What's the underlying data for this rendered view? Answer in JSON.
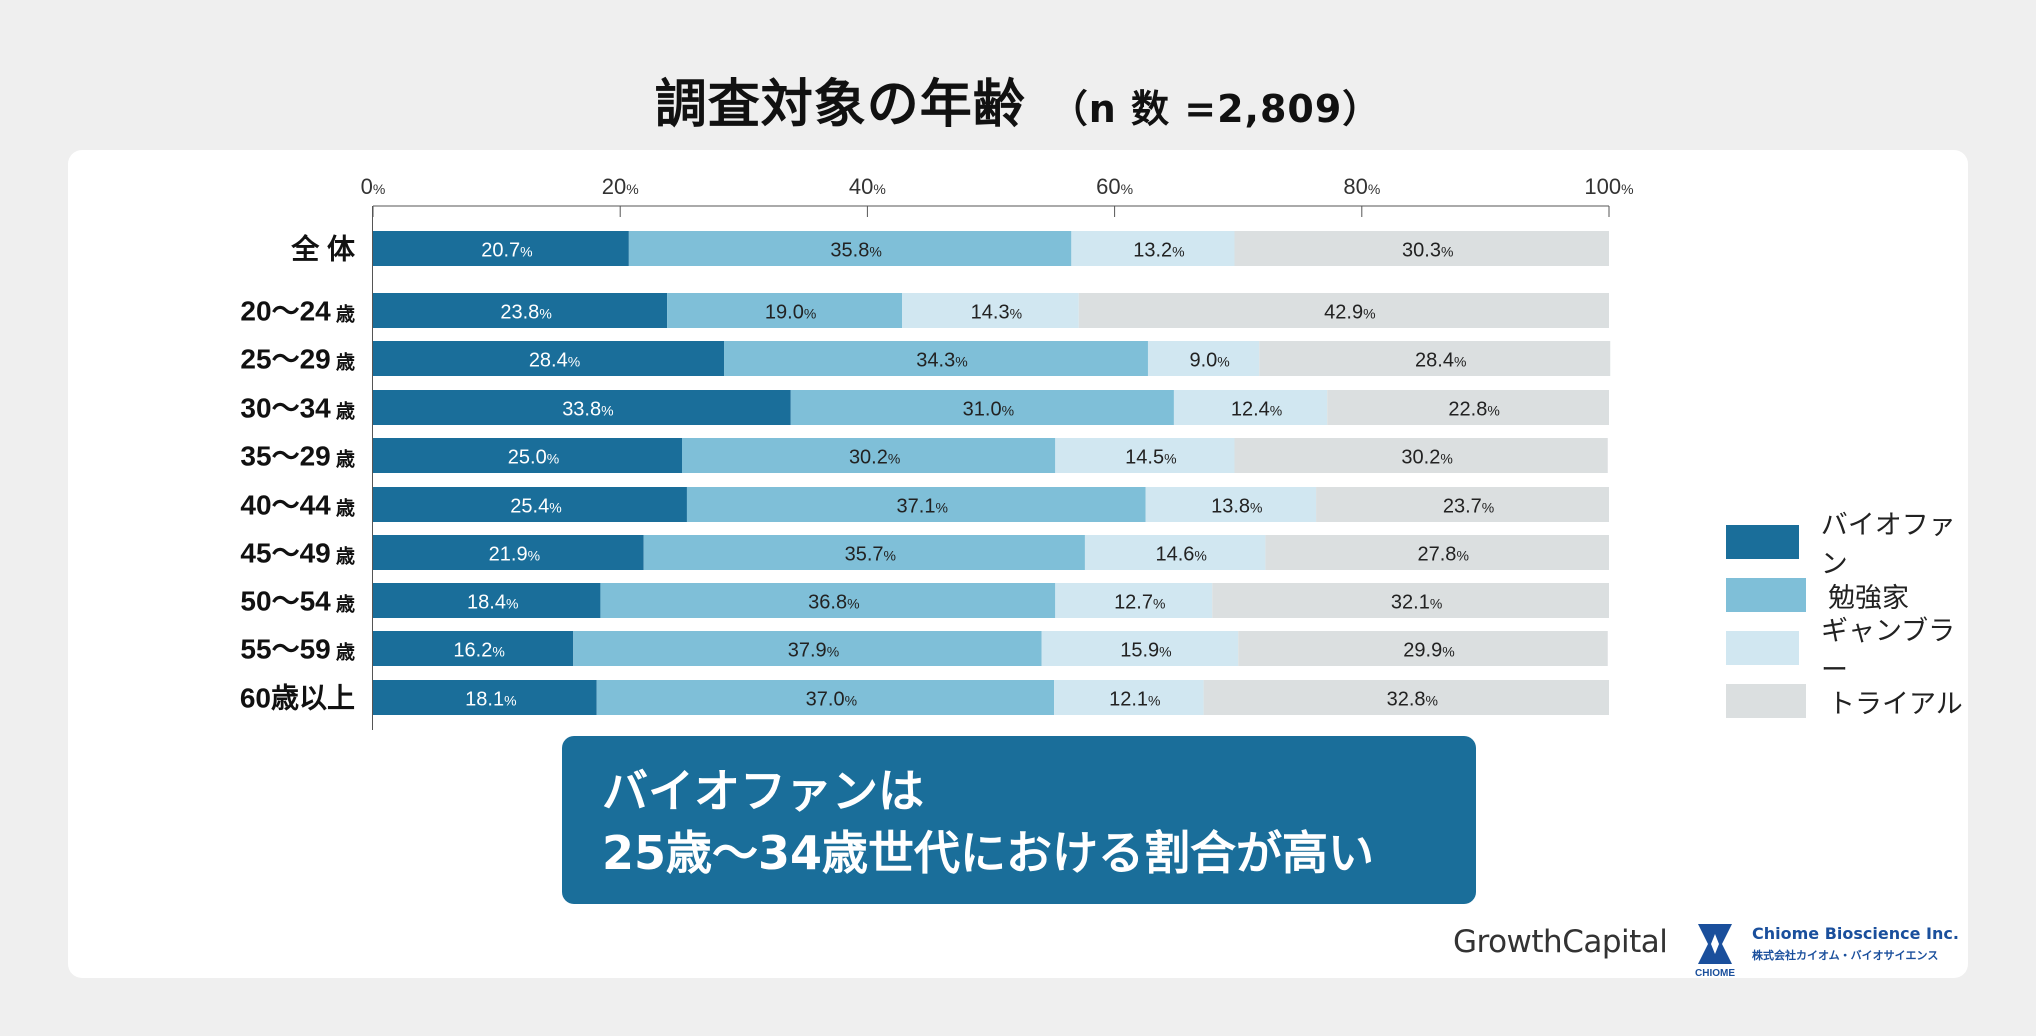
{
  "title": "調査対象の年齢",
  "subtitle": "（n 数 =2,809）",
  "colors": {
    "bio_fan": "#1a6e9a",
    "studier": "#7fbfd8",
    "gambler": "#d1e7f1",
    "trial": "#dbdfe0",
    "callout_bg": "#1a6e9a"
  },
  "chart_data": {
    "type": "bar",
    "orientation": "horizontal",
    "stacked": true,
    "xlim": [
      0,
      100
    ],
    "x_tick_labels": [
      "0",
      "20",
      "40",
      "60",
      "80",
      "100"
    ],
    "x_tick_unit": "%",
    "value_unit": "%",
    "legend_position": "right",
    "categories": [
      "全 体",
      "20〜24",
      "25〜29",
      "30〜34",
      "35〜29",
      "40〜44",
      "45〜49",
      "50〜54",
      "55〜59",
      "60"
    ],
    "category_suffix": [
      "",
      "歳",
      "歳",
      "歳",
      "歳",
      "歳",
      "歳",
      "歳",
      "歳",
      "歳以上"
    ],
    "series": [
      {
        "name": "バイオファン",
        "color": "#1a6e9a",
        "values": [
          20.7,
          23.8,
          28.4,
          33.8,
          25.0,
          25.4,
          21.9,
          18.4,
          16.2,
          18.1
        ]
      },
      {
        "name": "勉強家",
        "color": "#7fbfd8",
        "values": [
          35.8,
          19.0,
          34.3,
          31.0,
          30.2,
          37.1,
          35.7,
          36.8,
          37.9,
          37.0
        ]
      },
      {
        "name": "ギャンブラー",
        "color": "#d1e7f1",
        "values": [
          13.2,
          14.3,
          9.0,
          12.4,
          14.5,
          13.8,
          14.6,
          12.7,
          15.9,
          12.1
        ]
      },
      {
        "name": "トライアル",
        "color": "#dbdfe0",
        "values": [
          30.3,
          42.9,
          28.4,
          22.8,
          30.2,
          23.7,
          27.8,
          32.1,
          29.9,
          32.8
        ]
      }
    ]
  },
  "callout": {
    "line1": "バイオファンは",
    "line2": "25歳〜34歳世代における割合が高い"
  },
  "brands": {
    "growth_capital": "GrowthCapital",
    "chiome_mark": "CHIOME",
    "chiome_name": "Chiome Bioscience Inc.",
    "chiome_jp": "株式会社カイオム・バイオサイエンス"
  }
}
